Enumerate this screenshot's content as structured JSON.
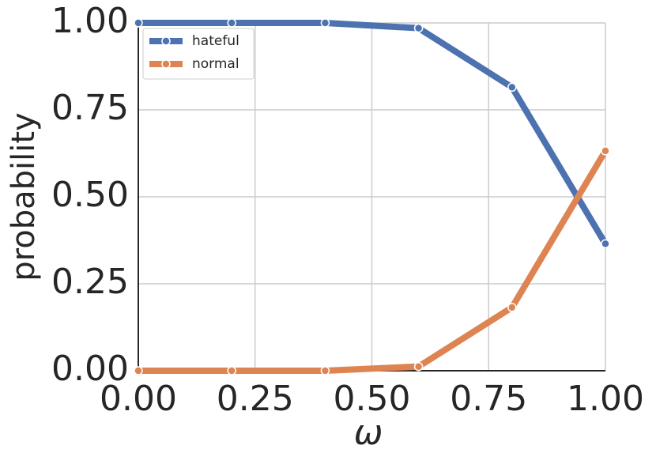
{
  "chart_data": {
    "type": "line",
    "xlabel": "ω",
    "ylabel": "probability",
    "x": [
      0.0,
      0.2,
      0.4,
      0.6,
      0.8,
      1.0
    ],
    "series": [
      {
        "name": "hateful",
        "color": "#4c72b0",
        "values": [
          1.0,
          1.0,
          1.0,
          0.985,
          0.815,
          0.365
        ]
      },
      {
        "name": "normal",
        "color": "#dd8452",
        "values": [
          0.0,
          0.0,
          0.0,
          0.012,
          0.182,
          0.632
        ]
      }
    ],
    "xlim": [
      0,
      1
    ],
    "ylim": [
      0,
      1
    ],
    "xticks": [
      {
        "value": 0,
        "label": "0.00"
      },
      {
        "value": 0.25,
        "label": "0.25"
      },
      {
        "value": 0.5,
        "label": "0.50"
      },
      {
        "value": 0.75,
        "label": "0.75"
      },
      {
        "value": 1,
        "label": "1.00"
      }
    ],
    "yticks": [
      {
        "value": 0,
        "label": "0.00"
      },
      {
        "value": 0.25,
        "label": "0.25"
      },
      {
        "value": 0.5,
        "label": "0.50"
      },
      {
        "value": 0.75,
        "label": "0.75"
      },
      {
        "value": 1,
        "label": "1.00"
      }
    ],
    "grid": true,
    "legend": "upper left"
  }
}
